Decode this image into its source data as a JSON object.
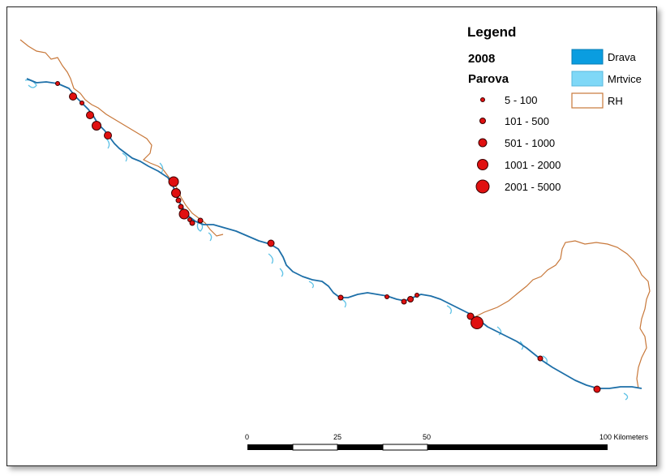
{
  "legend": {
    "title": "Legend",
    "year": "2008",
    "symbol_title": "Parova",
    "classes": [
      {
        "label": "5 - 100"
      },
      {
        "label": "101 - 500"
      },
      {
        "label": "501 - 1000"
      },
      {
        "label": "1001 - 2000"
      },
      {
        "label": "2001 - 5000"
      }
    ],
    "layers": [
      {
        "label": "Drava",
        "fill": "#0a9de0",
        "stroke": "#0a7db5"
      },
      {
        "label": "Mrtvice",
        "fill": "#7fd8f7",
        "stroke": "#5ab8dc"
      },
      {
        "label": "RH",
        "fill": "#ffffff",
        "stroke": "#c8783a"
      }
    ]
  },
  "colors": {
    "river": "#1d6fa8",
    "oxbow": "#5ec2e6",
    "border": "#c8783a",
    "point_fill": "#e01010",
    "point_stroke": "#3a0000"
  },
  "scalebar": {
    "ticks": [
      "0",
      "25",
      "50",
      "100 Kilometers"
    ]
  }
}
